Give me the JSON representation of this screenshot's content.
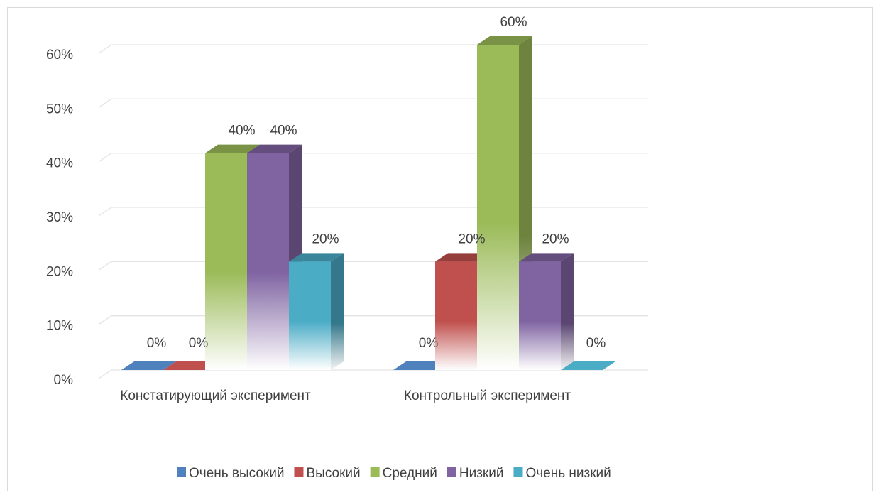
{
  "chart_data": {
    "type": "bar",
    "style": "3d-clustered-column",
    "categories": [
      "Констатирующий эксперимент",
      "Контрольный эксперимент"
    ],
    "series": [
      {
        "name": "Очень высокий",
        "color": "#4F81BD",
        "values": [
          0,
          0
        ],
        "labels": [
          "0%",
          "0%"
        ]
      },
      {
        "name": "Высокий",
        "color": "#C0504D",
        "values": [
          0,
          20
        ],
        "labels": [
          "0%",
          "20%"
        ]
      },
      {
        "name": "Средний",
        "color": "#9BBB59",
        "values": [
          40,
          60
        ],
        "labels": [
          "40%",
          "60%"
        ]
      },
      {
        "name": "Низкий",
        "color": "#8064A2",
        "values": [
          40,
          20
        ],
        "labels": [
          "40%",
          "20%"
        ]
      },
      {
        "name": "Очень низкий",
        "color": "#4BACC6",
        "values": [
          20,
          0
        ],
        "labels": [
          "20%",
          "0%"
        ]
      }
    ],
    "y_ticks": [
      "0%",
      "10%",
      "20%",
      "30%",
      "40%",
      "50%",
      "60%"
    ],
    "ylim": [
      0,
      60
    ],
    "grid": true,
    "legend_position": "bottom"
  }
}
